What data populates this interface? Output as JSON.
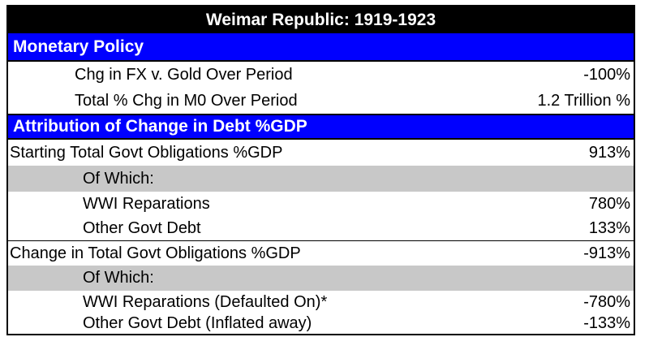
{
  "title": "Weimar Republic: 1919-1923",
  "monetary_policy": {
    "header": "Monetary Policy",
    "rows": [
      {
        "label": "Chg in FX v. Gold Over Period",
        "value": "-100%"
      },
      {
        "label": "Total % Chg in M0 Over Period",
        "value": "1.2 Trillion %"
      }
    ]
  },
  "attribution": {
    "header": "Attribution of Change in Debt %GDP",
    "starting": {
      "label": "Starting Total Govt Obligations %GDP",
      "value": "913%",
      "of_which": "Of Which:",
      "items": [
        {
          "label": "WWI Reparations",
          "value": "780%"
        },
        {
          "label": "Other Govt Debt",
          "value": "133%"
        }
      ]
    },
    "change": {
      "label": "Change in Total Govt Obligations %GDP",
      "value": "-913%",
      "of_which": "Of Which:",
      "items": [
        {
          "label": "WWI Reparations (Defaulted On)*",
          "value": "-780%"
        },
        {
          "label": "Other Govt Debt (Inflated away)",
          "value": "-133%"
        }
      ]
    }
  },
  "colors": {
    "title_bg": "#000000",
    "section_bg": "#0000ff",
    "subheader_bg": "#c8c8c8"
  }
}
